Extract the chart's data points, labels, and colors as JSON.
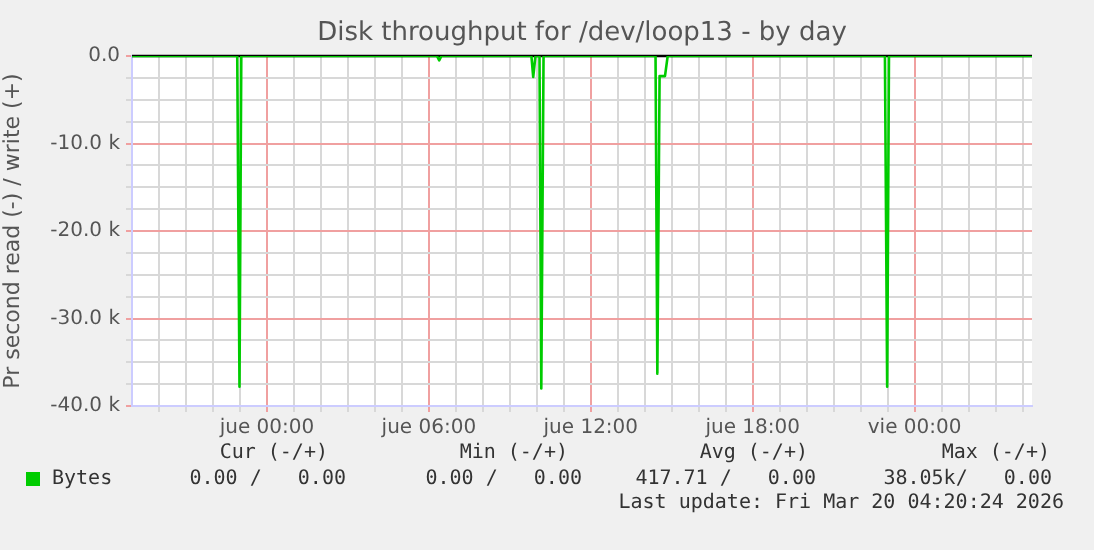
{
  "chart_data": {
    "type": "line",
    "title": "Disk throughput for /dev/loop13 - by day",
    "ylabel": "Pr second read (-) / write (+)",
    "series": [
      {
        "name": "Bytes",
        "color": "#00cc00",
        "x": [
          "2026-03-18T19:00",
          "2026-03-18T22:54",
          "2026-03-18T22:59",
          "2026-03-18T23:03",
          "2026-03-19T06:18",
          "2026-03-19T06:23",
          "2026-03-19T06:28",
          "2026-03-19T09:48",
          "2026-03-19T09:52",
          "2026-03-19T09:57",
          "2026-03-19T10:06",
          "2026-03-19T10:10",
          "2026-03-19T10:15",
          "2026-03-19T14:24",
          "2026-03-19T14:28",
          "2026-03-19T14:33",
          "2026-03-19T14:36",
          "2026-03-19T14:45",
          "2026-03-19T14:51",
          "2026-03-19T22:54",
          "2026-03-19T22:59",
          "2026-03-19T23:03",
          "2026-03-20T04:21"
        ],
        "values": [
          0,
          0,
          -37800,
          0,
          0,
          -500,
          0,
          0,
          -2400,
          0,
          0,
          -38000,
          0,
          0,
          -36300,
          -2300,
          -2300,
          -2300,
          0,
          0,
          -37800,
          0,
          0
        ]
      }
    ],
    "xlim": [
      "2026-03-18T19:00",
      "2026-03-20T04:21"
    ],
    "xticks": [
      {
        "value": "2026-03-18T20:00",
        "label": null
      },
      {
        "value": "2026-03-18T21:00",
        "label": null
      },
      {
        "value": "2026-03-18T22:00",
        "label": null
      },
      {
        "value": "2026-03-18T23:00",
        "label": null
      },
      {
        "value": "2026-03-19T00:00",
        "label": "jue 00:00"
      },
      {
        "value": "2026-03-19T01:00",
        "label": null
      },
      {
        "value": "2026-03-19T02:00",
        "label": null
      },
      {
        "value": "2026-03-19T03:00",
        "label": null
      },
      {
        "value": "2026-03-19T04:00",
        "label": null
      },
      {
        "value": "2026-03-19T05:00",
        "label": null
      },
      {
        "value": "2026-03-19T06:00",
        "label": "jue 06:00"
      },
      {
        "value": "2026-03-19T07:00",
        "label": null
      },
      {
        "value": "2026-03-19T08:00",
        "label": null
      },
      {
        "value": "2026-03-19T09:00",
        "label": null
      },
      {
        "value": "2026-03-19T10:00",
        "label": null
      },
      {
        "value": "2026-03-19T11:00",
        "label": null
      },
      {
        "value": "2026-03-19T12:00",
        "label": "jue 12:00"
      },
      {
        "value": "2026-03-19T13:00",
        "label": null
      },
      {
        "value": "2026-03-19T14:00",
        "label": null
      },
      {
        "value": "2026-03-19T15:00",
        "label": null
      },
      {
        "value": "2026-03-19T16:00",
        "label": null
      },
      {
        "value": "2026-03-19T17:00",
        "label": null
      },
      {
        "value": "2026-03-19T18:00",
        "label": "jue 18:00"
      },
      {
        "value": "2026-03-19T19:00",
        "label": null
      },
      {
        "value": "2026-03-19T20:00",
        "label": null
      },
      {
        "value": "2026-03-19T21:00",
        "label": null
      },
      {
        "value": "2026-03-19T22:00",
        "label": null
      },
      {
        "value": "2026-03-19T23:00",
        "label": null
      },
      {
        "value": "2026-03-20T00:00",
        "label": "vie 00:00"
      },
      {
        "value": "2026-03-20T01:00",
        "label": null
      },
      {
        "value": "2026-03-20T02:00",
        "label": null
      },
      {
        "value": "2026-03-20T03:00",
        "label": null
      },
      {
        "value": "2026-03-20T04:00",
        "label": null
      }
    ],
    "ylim": [
      -40000,
      0
    ],
    "yticks": [
      {
        "value": -40000,
        "label": "-40.0 k"
      },
      {
        "value": -37500,
        "label": null
      },
      {
        "value": -35000,
        "label": null
      },
      {
        "value": -32500,
        "label": null
      },
      {
        "value": -30000,
        "label": "-30.0 k"
      },
      {
        "value": -27500,
        "label": null
      },
      {
        "value": -25000,
        "label": null
      },
      {
        "value": -22500,
        "label": null
      },
      {
        "value": -20000,
        "label": "-20.0 k"
      },
      {
        "value": -17500,
        "label": null
      },
      {
        "value": -15000,
        "label": null
      },
      {
        "value": -12500,
        "label": null
      },
      {
        "value": -10000,
        "label": "-10.0 k"
      },
      {
        "value": -7500,
        "label": null
      },
      {
        "value": -5000,
        "label": null
      },
      {
        "value": -2500,
        "label": null
      },
      {
        "value": 0,
        "label": "0.0"
      }
    ],
    "ref_lines": [
      {
        "axis": "y",
        "value": 0,
        "color": "#000000"
      }
    ],
    "grid": true,
    "legend": "bottom left",
    "marker": "none",
    "line_style": "solid",
    "annotations": [
      "Cur (-/+)",
      "Min (-/+)",
      "Avg (-/+)",
      "Max (-/+)",
      "0.00 /   0.00",
      "0.00 /   0.00",
      "417.71 /   0.00",
      "38.05k/   0.00",
      "Last update: Fri Mar 20 04:20:24 2026"
    ]
  }
}
